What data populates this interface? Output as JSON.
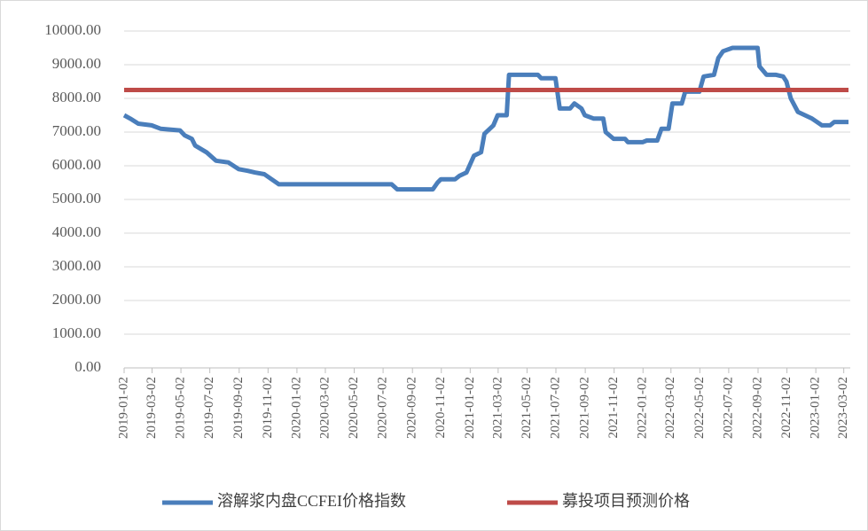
{
  "chart_data": {
    "type": "line",
    "xlim": [
      "2019-01-02",
      "2023-03-12"
    ],
    "xticks": [
      "2019-01-02",
      "2019-03-02",
      "2019-05-02",
      "2019-07-02",
      "2019-09-02",
      "2019-11-02",
      "2020-01-02",
      "2020-03-02",
      "2020-05-02",
      "2020-07-02",
      "2020-09-02",
      "2020-11-02",
      "2021-01-02",
      "2021-03-02",
      "2021-05-02",
      "2021-07-02",
      "2021-09-02",
      "2021-11-02",
      "2022-01-02",
      "2022-03-02",
      "2022-05-02",
      "2022-07-02",
      "2022-09-02",
      "2022-11-02",
      "2023-01-02",
      "2023-03-02"
    ],
    "ylim": [
      0,
      10000
    ],
    "yticks": [
      {
        "value": 0,
        "label": "0.00"
      },
      {
        "value": 1000,
        "label": "1000.00"
      },
      {
        "value": 2000,
        "label": "2000.00"
      },
      {
        "value": 3000,
        "label": "3000.00"
      },
      {
        "value": 4000,
        "label": "4000.00"
      },
      {
        "value": 5000,
        "label": "5000.00"
      },
      {
        "value": 6000,
        "label": "6000.00"
      },
      {
        "value": 7000,
        "label": "7000.00"
      },
      {
        "value": 8000,
        "label": "8000.00"
      },
      {
        "value": 9000,
        "label": "9000.00"
      },
      {
        "value": 10000,
        "label": "10000.00"
      }
    ],
    "grid": true,
    "legend": "bottom",
    "series": [
      {
        "name": "溶解浆内盘CCFEI价格指数",
        "color": "#4a7ebb",
        "x": [
          "2019-01-02",
          "2019-01-15",
          "2019-02-01",
          "2019-03-01",
          "2019-03-20",
          "2019-04-30",
          "2019-05-10",
          "2019-05-25",
          "2019-06-01",
          "2019-06-25",
          "2019-07-15",
          "2019-08-10",
          "2019-09-01",
          "2019-09-20",
          "2019-10-05",
          "2019-10-25",
          "2019-11-25",
          "2020-07-20",
          "2020-08-01",
          "2020-10-15",
          "2020-10-25",
          "2020-11-01",
          "2020-12-01",
          "2020-12-10",
          "2020-12-25",
          "2021-01-10",
          "2021-01-25",
          "2021-02-01",
          "2021-02-20",
          "2021-03-01",
          "2021-03-20",
          "2021-03-25",
          "2021-05-25",
          "2021-06-01",
          "2021-07-01",
          "2021-07-10",
          "2021-08-01",
          "2021-08-10",
          "2021-08-25",
          "2021-09-01",
          "2021-09-20",
          "2021-10-10",
          "2021-10-15",
          "2021-11-01",
          "2021-11-25",
          "2021-12-01",
          "2022-01-01",
          "2022-01-10",
          "2022-02-01",
          "2022-02-10",
          "2022-02-25",
          "2022-03-05",
          "2022-03-25",
          "2022-04-01",
          "2022-05-01",
          "2022-05-10",
          "2022-06-01",
          "2022-06-10",
          "2022-06-20",
          "2022-07-10",
          "2022-09-01",
          "2022-09-05",
          "2022-09-20",
          "2022-10-10",
          "2022-10-25",
          "2022-11-01",
          "2022-11-10",
          "2022-11-25",
          "2022-12-10",
          "2022-12-25",
          "2023-01-15",
          "2023-02-01",
          "2023-02-10",
          "2023-03-12"
        ],
        "values": [
          7500,
          7400,
          7250,
          7200,
          7100,
          7050,
          6900,
          6800,
          6600,
          6400,
          6150,
          6100,
          5900,
          5850,
          5800,
          5750,
          5450,
          5450,
          5300,
          5300,
          5500,
          5600,
          5600,
          5700,
          5800,
          6300,
          6400,
          6950,
          7200,
          7500,
          7500,
          8700,
          8700,
          8600,
          8600,
          7700,
          7700,
          7850,
          7700,
          7500,
          7400,
          7400,
          7000,
          6800,
          6800,
          6700,
          6700,
          6750,
          6750,
          7100,
          7100,
          7850,
          7850,
          8200,
          8200,
          8650,
          8700,
          9200,
          9400,
          9500,
          9500,
          8950,
          8700,
          8700,
          8650,
          8500,
          8000,
          7600,
          7500,
          7400,
          7200,
          7200,
          7300,
          7300
        ]
      },
      {
        "name": "募投项目预测价格",
        "color": "#be4b48",
        "x": [
          "2019-01-02",
          "2023-03-12"
        ],
        "values": [
          8250,
          8250
        ]
      }
    ]
  }
}
